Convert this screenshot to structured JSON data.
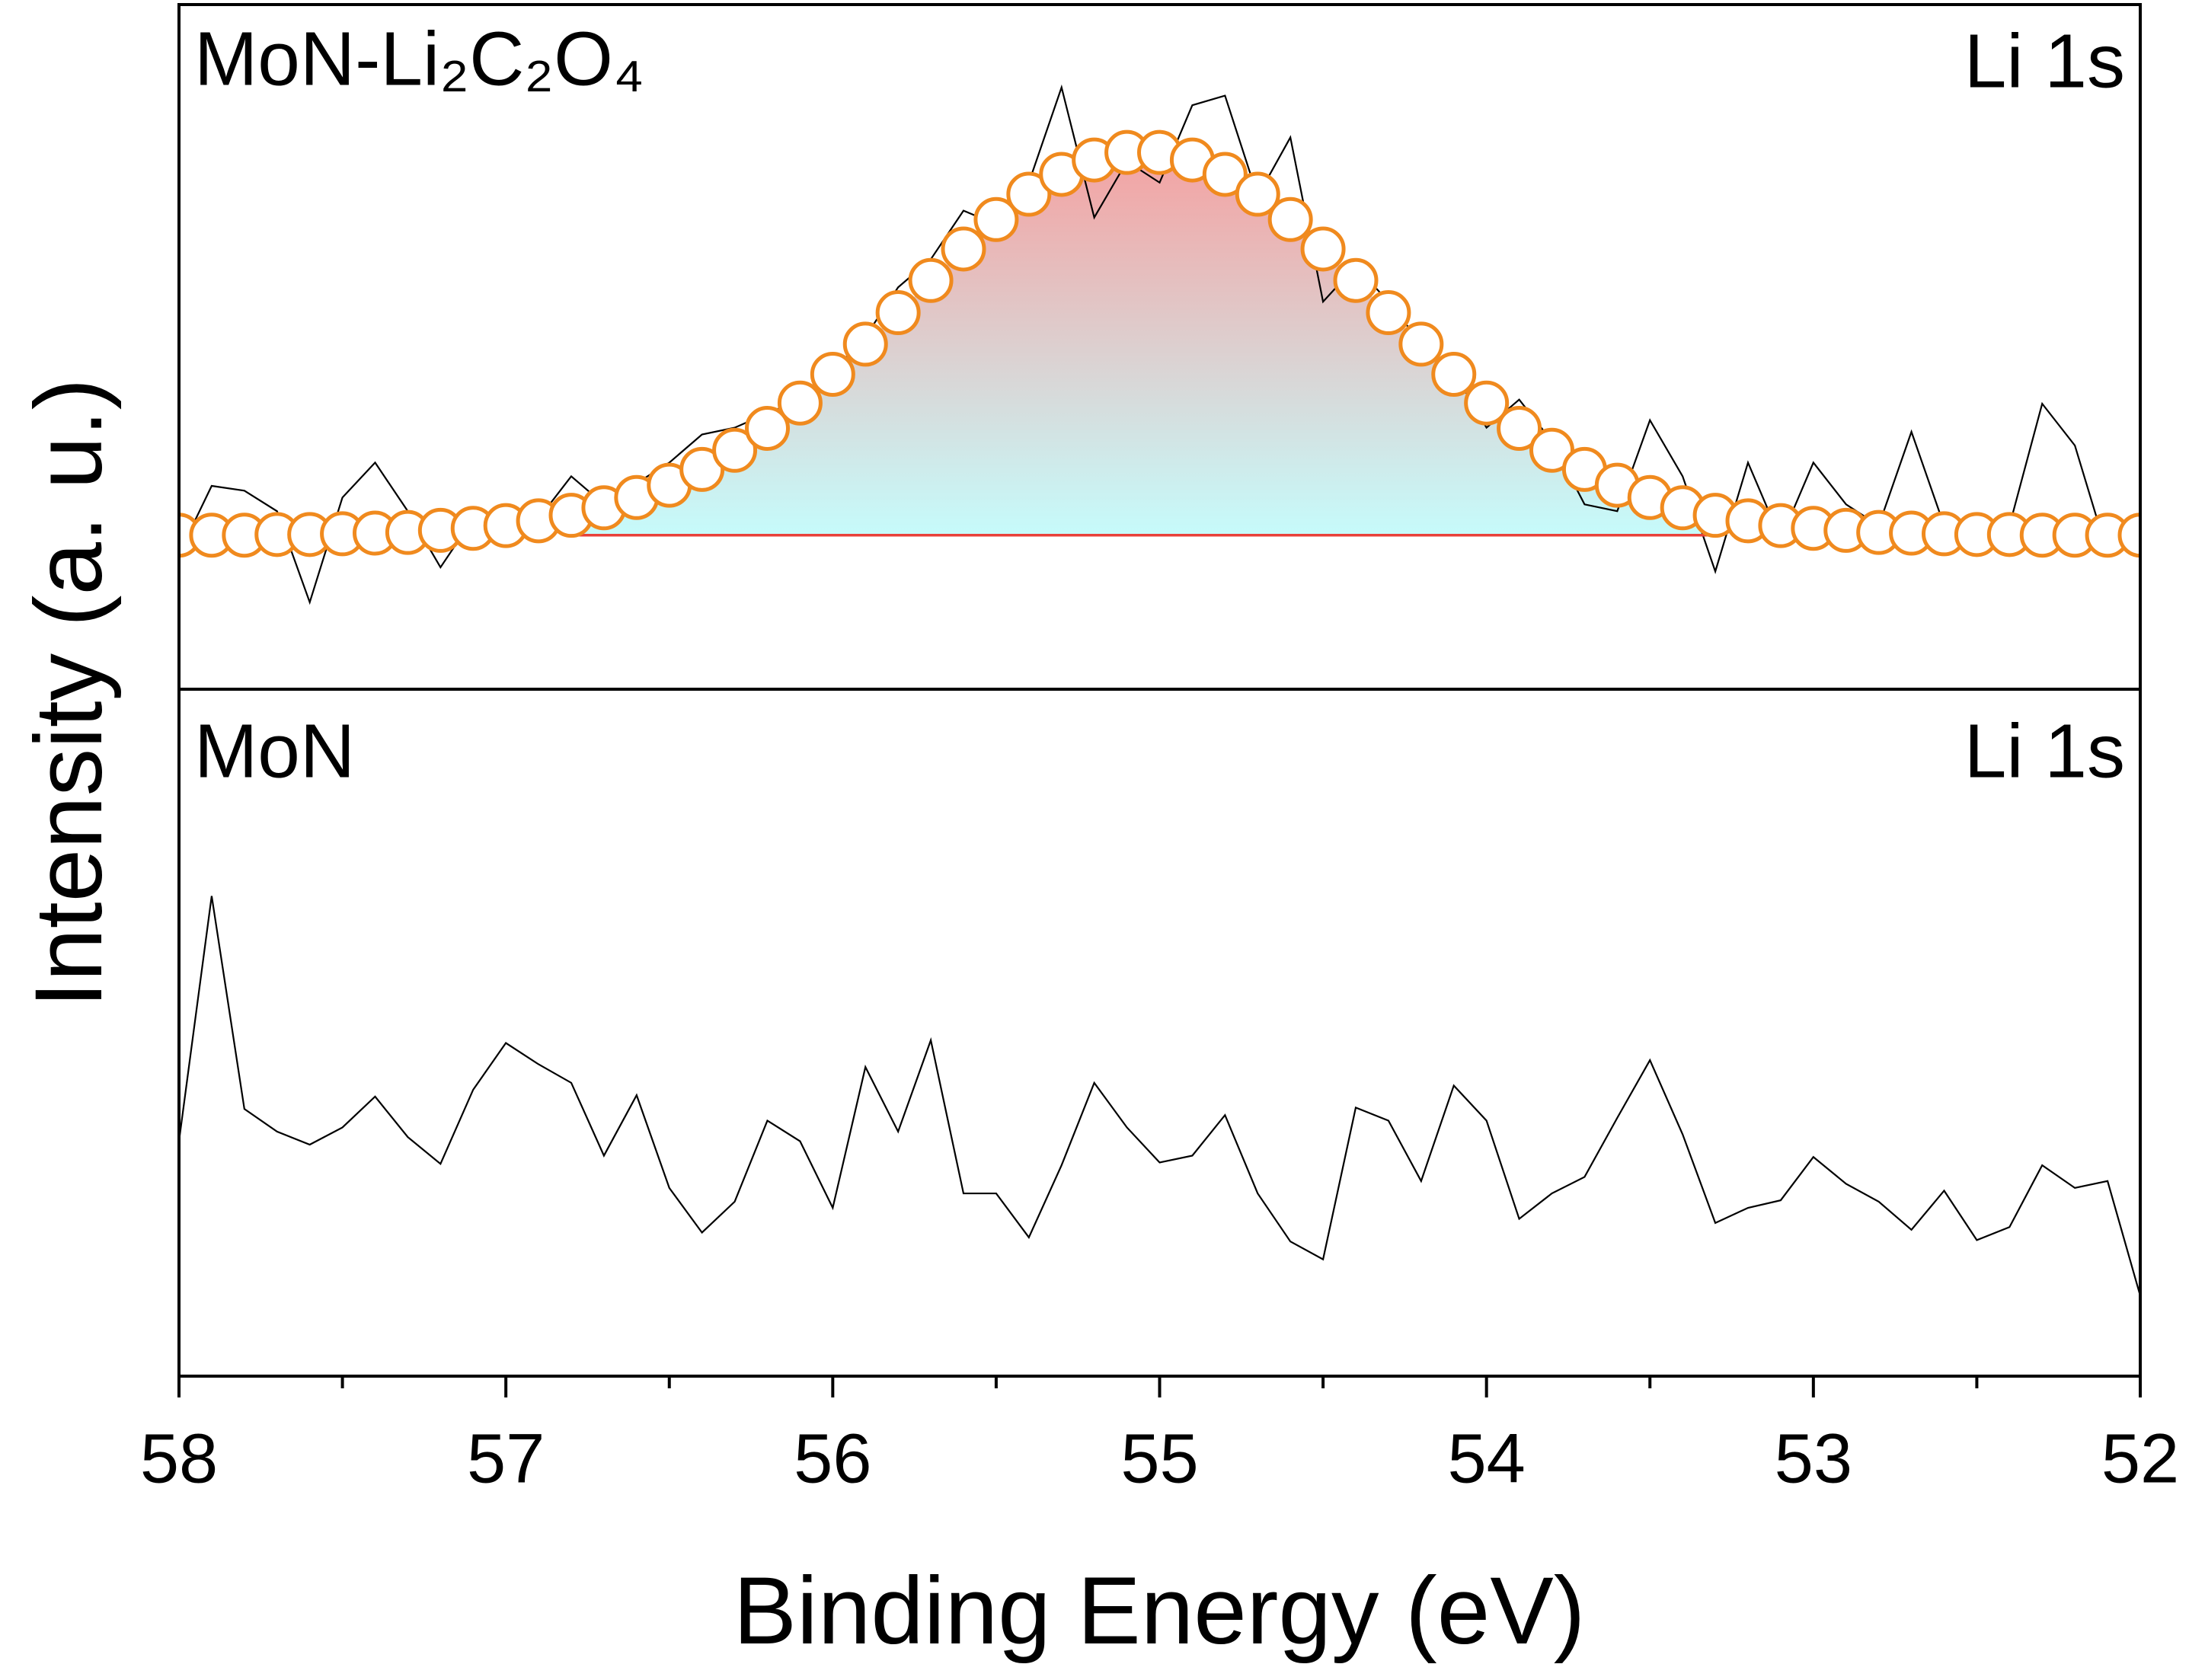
{
  "chart_data": [
    {
      "type": "line",
      "label": "MoN-Li₂C₂O₄",
      "annotation": "Li 1s",
      "x": [
        58.0,
        57.9,
        57.8,
        57.7,
        57.6,
        57.5,
        57.4,
        57.3,
        57.2,
        57.1,
        57.0,
        56.9,
        56.8,
        56.7,
        56.6,
        56.5,
        56.4,
        56.3,
        56.2,
        56.1,
        56.0,
        55.9,
        55.8,
        55.7,
        55.6,
        55.5,
        55.4,
        55.3,
        55.2,
        55.1,
        55.0,
        54.9,
        54.8,
        54.7,
        54.6,
        54.5,
        54.4,
        54.3,
        54.2,
        54.1,
        54.0,
        53.9,
        53.8,
        53.7,
        53.6,
        53.5,
        53.4,
        53.3,
        53.2,
        53.1,
        53.0,
        52.9,
        52.8,
        52.7,
        52.6,
        52.5,
        52.4,
        52.3,
        52.2,
        52.1,
        52.0
      ],
      "xlim": [
        58,
        52
      ],
      "ylim": [
        0,
        100
      ],
      "series": [
        {
          "color": "#000000",
          "values": [
            19.8,
            29.7,
            29.0,
            26.0,
            12.7,
            28.0,
            33.1,
            26.0,
            17.8,
            24.9,
            24.9,
            24.9,
            31.1,
            27.0,
            30.1,
            33.1,
            37.2,
            38.2,
            40.3,
            42.3,
            46.4,
            51.5,
            58.7,
            62.8,
            69.9,
            67.9,
            74.0,
            87.9,
            68.9,
            77.1,
            74.0,
            85.3,
            86.7,
            72.0,
            80.6,
            56.6,
            61.8,
            56.6,
            50.5,
            46.4,
            38.2,
            42.3,
            36.2,
            27.0,
            26.0,
            39.3,
            31.1,
            17.2,
            33.1,
            21.9,
            33.1,
            27.0,
            23.9,
            37.6,
            23.9,
            21.9,
            23.9,
            41.7,
            35.6,
            19.8,
            24.9
          ]
        },
        {
          "color": "#f08a1e",
          "marker": "circle",
          "fill_gradient": [
            "#f4a2a2",
            "#c6fbfb"
          ],
          "values": [
            22.5,
            22.5,
            22.5,
            22.6,
            22.6,
            22.7,
            22.8,
            22.9,
            23.2,
            23.5,
            23.9,
            24.6,
            25.4,
            26.5,
            28.0,
            29.8,
            32.1,
            34.9,
            38.1,
            41.8,
            46.0,
            50.4,
            55.0,
            59.7,
            64.3,
            68.6,
            72.3,
            75.2,
            77.3,
            78.4,
            78.4,
            77.3,
            75.2,
            72.3,
            68.6,
            64.3,
            59.7,
            55.0,
            50.4,
            46.0,
            41.8,
            38.1,
            34.9,
            32.1,
            29.8,
            28.0,
            26.5,
            25.4,
            24.6,
            23.9,
            23.5,
            23.2,
            22.9,
            22.8,
            22.7,
            22.6,
            22.6,
            22.5,
            22.5,
            22.5,
            22.5
          ]
        },
        {
          "color": "#e8403a",
          "values": [
            null,
            null,
            null,
            null,
            null,
            null,
            null,
            null,
            null,
            null,
            null,
            null,
            22.5,
            22.5,
            22.5,
            22.5,
            22.5,
            22.5,
            22.5,
            22.5,
            22.5,
            22.5,
            22.5,
            22.5,
            22.5,
            22.5,
            22.5,
            22.5,
            22.5,
            22.5,
            22.5,
            22.5,
            22.5,
            22.5,
            22.5,
            22.5,
            22.5,
            22.5,
            22.5,
            22.5,
            22.5,
            22.5,
            22.5,
            22.5,
            22.5,
            22.5,
            22.5,
            22.5,
            null,
            null,
            null,
            null,
            null,
            null,
            null,
            null,
            null,
            null,
            null,
            null,
            null
          ]
        }
      ]
    },
    {
      "type": "line",
      "label": "MoN",
      "annotation": "Li 1s",
      "xlabel": "Binding Energy (eV)",
      "ylabel": "Intensity (a. u.)",
      "x": [
        58.0,
        57.9,
        57.8,
        57.7,
        57.6,
        57.5,
        57.4,
        57.3,
        57.2,
        57.1,
        57.0,
        56.9,
        56.8,
        56.7,
        56.6,
        56.5,
        56.4,
        56.3,
        56.2,
        56.1,
        56.0,
        55.9,
        55.8,
        55.7,
        55.6,
        55.5,
        55.4,
        55.3,
        55.2,
        55.1,
        55.0,
        54.9,
        54.8,
        54.7,
        54.6,
        54.5,
        54.4,
        54.3,
        54.2,
        54.1,
        54.0,
        53.9,
        53.8,
        53.7,
        53.6,
        53.5,
        53.4,
        53.3,
        53.2,
        53.1,
        53.0,
        52.9,
        52.8,
        52.7,
        52.6,
        52.5,
        52.4,
        52.3,
        52.2,
        52.1,
        52.0
      ],
      "xlim": [
        58,
        52
      ],
      "ylim": [
        0,
        100
      ],
      "xticks": [
        58,
        57,
        56,
        55,
        54,
        53,
        52
      ],
      "xminorticks": [
        57.5,
        56.5,
        55.5,
        54.5,
        53.5,
        52.5
      ],
      "series": [
        {
          "color": "#000000",
          "values": [
            34.2,
            69.9,
            38.9,
            35.6,
            33.7,
            36.2,
            40.7,
            34.8,
            30.9,
            41.7,
            48.5,
            45.4,
            42.7,
            32.1,
            40.9,
            27.4,
            20.9,
            25.4,
            37.2,
            34.2,
            24.5,
            45.0,
            35.6,
            48.9,
            26.6,
            26.6,
            20.2,
            30.7,
            42.7,
            36.2,
            31.1,
            32.1,
            38.0,
            26.6,
            19.6,
            17.0,
            39.1,
            37.2,
            28.4,
            42.3,
            37.2,
            22.9,
            26.6,
            29.0,
            37.6,
            46.0,
            35.2,
            22.3,
            24.5,
            25.6,
            31.9,
            28.0,
            25.4,
            21.3,
            27.0,
            19.8,
            21.7,
            30.7,
            27.4,
            28.4,
            11.7
          ]
        }
      ]
    }
  ]
}
